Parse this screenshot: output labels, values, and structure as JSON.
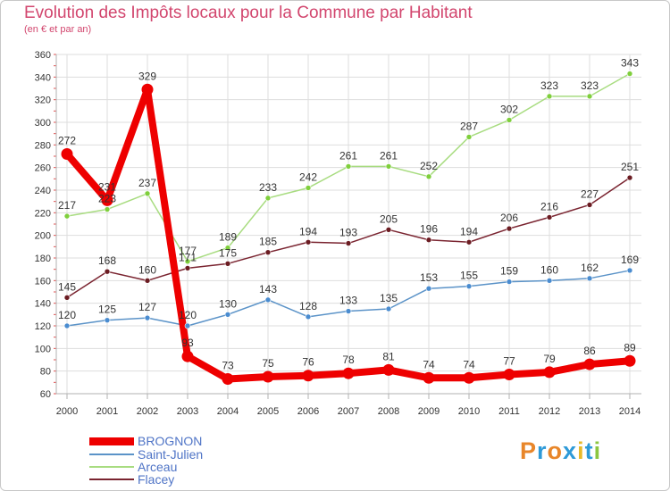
{
  "title": "Evolution des Impôts locaux pour la Commune par Habitant",
  "subtitle": "(en € et par an)",
  "logo": {
    "text": "Proxiti",
    "letter_colors": [
      "#e8862a",
      "#2e9ad8",
      "#e8862a",
      "#2e9ad8",
      "#e8b92a",
      "#2e9ad8",
      "#8cc63f"
    ]
  },
  "chart_data": {
    "type": "line",
    "categories": [
      "2000",
      "2001",
      "2002",
      "2003",
      "2004",
      "2005",
      "2006",
      "2007",
      "2008",
      "2009",
      "2010",
      "2011",
      "2012",
      "2013",
      "2014"
    ],
    "ylim": [
      60,
      360
    ],
    "yticks": [
      60,
      80,
      100,
      120,
      140,
      160,
      180,
      200,
      220,
      240,
      260,
      280,
      300,
      320,
      340,
      360
    ],
    "xlabel": "",
    "ylabel": "",
    "series": [
      {
        "name": "Arceau",
        "color": "#a8dc80",
        "marker": "#7fcf3c",
        "width": 1.5,
        "values": [
          217,
          223,
          237,
          177,
          189,
          233,
          242,
          261,
          261,
          252,
          287,
          302,
          323,
          323,
          343
        ]
      },
      {
        "name": "Flacey",
        "color": "#7a2430",
        "marker": "#6b1c22",
        "width": 1.5,
        "values": [
          145,
          168,
          160,
          171,
          175,
          185,
          194,
          193,
          205,
          196,
          194,
          206,
          216,
          227,
          251
        ]
      },
      {
        "name": "Saint-Julien",
        "color": "#5b93c8",
        "marker": "#4a8cd0",
        "width": 1.5,
        "values": [
          120,
          125,
          127,
          120,
          130,
          143,
          128,
          133,
          135,
          153,
          155,
          159,
          160,
          162,
          169
        ]
      },
      {
        "name": "BROGNON",
        "color": "#ee0000",
        "marker": "#ee0000",
        "width": 8,
        "values": [
          272,
          231,
          329,
          93,
          73,
          75,
          76,
          78,
          81,
          74,
          74,
          77,
          79,
          86,
          89
        ]
      }
    ],
    "legend_order": [
      "BROGNON",
      "Saint-Julien",
      "Arceau",
      "Flacey"
    ],
    "legend_position": "bottom-left"
  }
}
